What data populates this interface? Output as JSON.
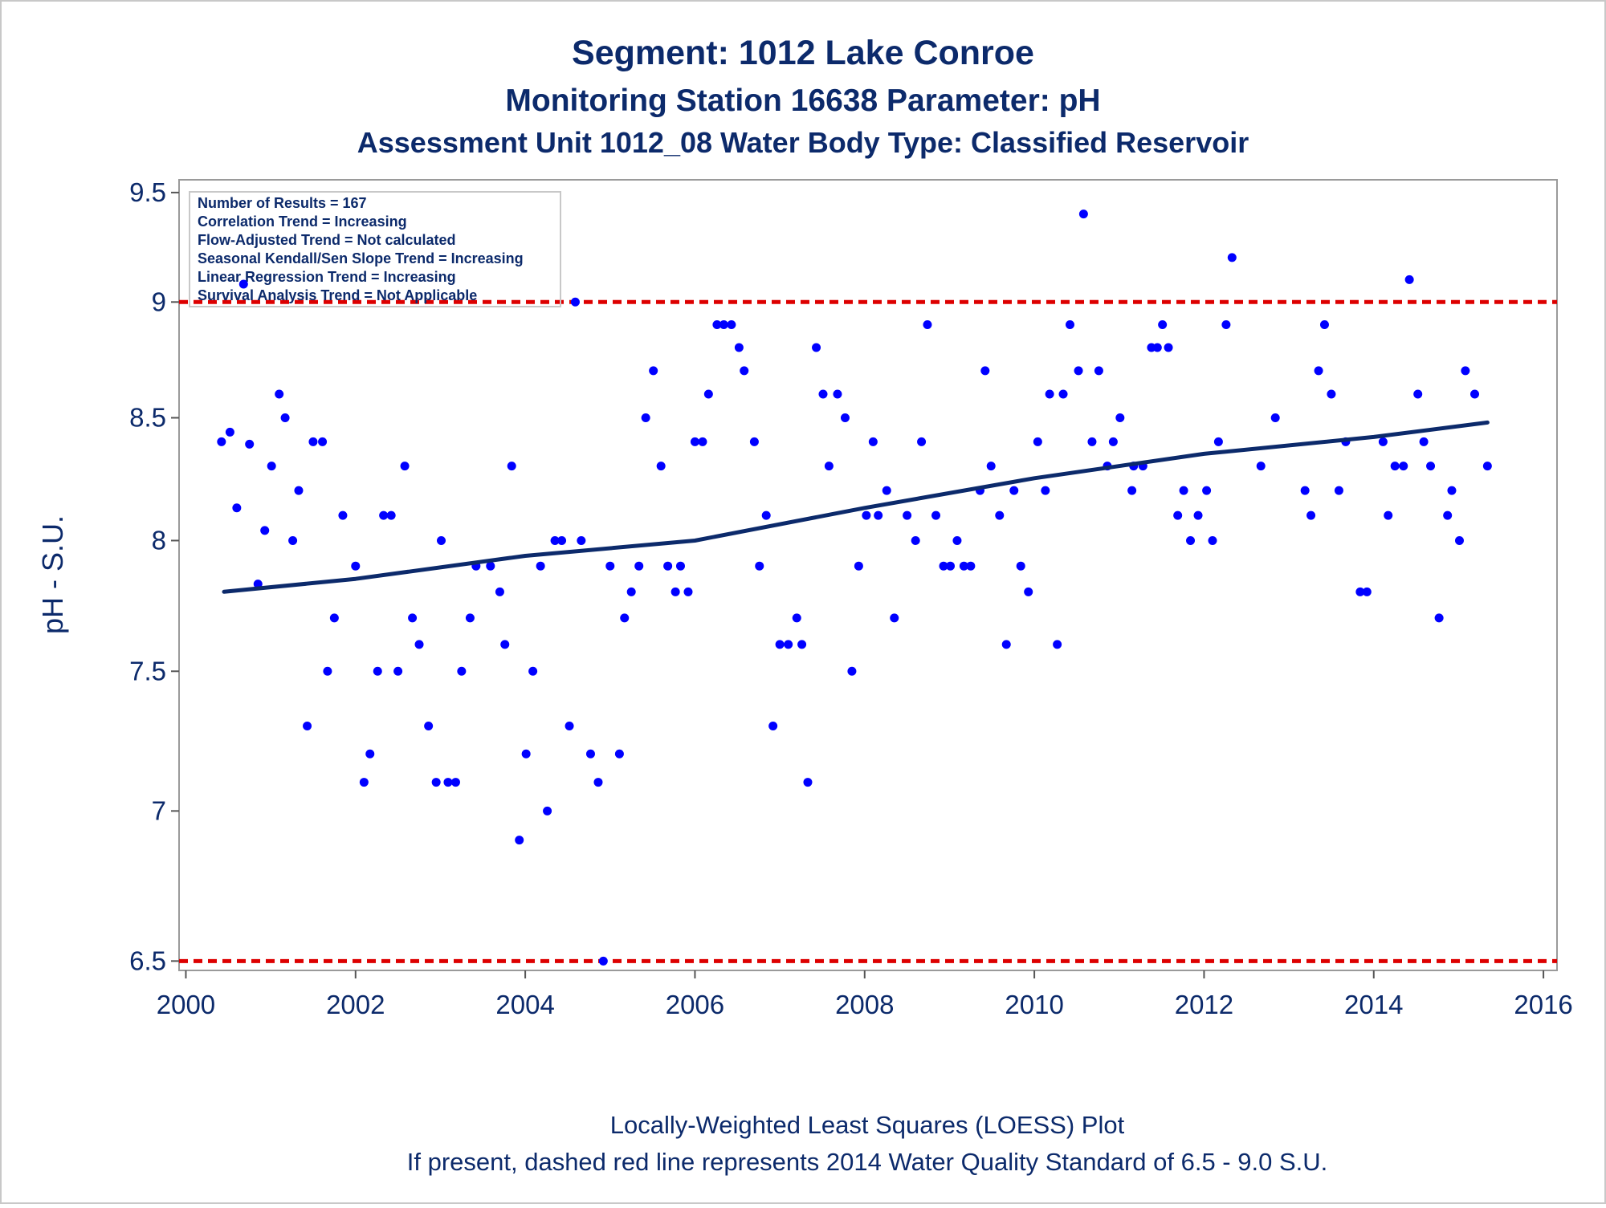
{
  "chart_data": {
    "type": "scatter",
    "title": "Segment: 1012  Lake Conroe",
    "subtitle": "Monitoring Station 16638 Parameter: pH",
    "subtitle2": "Assessment Unit 1012_08   Water Body Type: Classified Reservoir",
    "y_label": "pH - S.U.",
    "footnotes": [
      "Locally-Weighted Least Squares (LOESS) Plot",
      "If present, dashed red line represents 2014 Water Quality Standard of 6.5 - 9.0 S.U."
    ],
    "annotations": [
      "Number of Results = 167",
      "Correlation Trend = Increasing",
      "Flow-Adjusted Trend = Not calculated",
      "Seasonal Kendall/Sen Slope Trend = Increasing",
      "Linear Regression Trend = Increasing",
      "Survival Analysis Trend = Not Applicable"
    ],
    "xlim": [
      1999.92,
      2016.16
    ],
    "xticks": [
      2000,
      2002,
      2004,
      2006,
      2008,
      2010,
      2012,
      2014,
      2016
    ],
    "ylim": [
      6.47,
      9.56
    ],
    "yticks": [
      6.5,
      7,
      7.5,
      8,
      8.5,
      9,
      9.5
    ],
    "yscale": "log",
    "reference_lines": [
      {
        "value": 9,
        "color": "#dd0000"
      },
      {
        "value": 6.5,
        "color": "#dd0000"
      }
    ],
    "series": [
      {
        "mark": "scatter",
        "color": "#0000ff",
        "x": [
          2000.42,
          2000.52,
          2000.6,
          2000.68,
          2000.75,
          2000.85,
          2000.93,
          2001.01,
          2001.1,
          2001.17,
          2001.26,
          2001.33,
          2001.43,
          2001.5,
          2001.61,
          2001.67,
          2001.75,
          2001.85,
          2002.0,
          2002.1,
          2002.17,
          2002.26,
          2002.33,
          2002.42,
          2002.5,
          2002.58,
          2002.67,
          2002.75,
          2002.86,
          2002.95,
          2003.01,
          2003.09,
          2003.18,
          2003.25,
          2003.35,
          2003.42,
          2003.59,
          2003.7,
          2003.76,
          2003.84,
          2003.93,
          2004.01,
          2004.09,
          2004.18,
          2004.26,
          2004.35,
          2004.43,
          2004.52,
          2004.59,
          2004.66,
          2004.77,
          2004.86,
          2004.92,
          2005.0,
          2005.11,
          2005.17,
          2005.25,
          2005.34,
          2005.42,
          2005.51,
          2005.6,
          2005.68,
          2005.77,
          2005.83,
          2005.92,
          2006.0,
          2006.09,
          2006.16,
          2006.26,
          2006.34,
          2006.43,
          2006.52,
          2006.58,
          2006.7,
          2006.76,
          2006.84,
          2006.92,
          2007.0,
          2007.1,
          2007.2,
          2007.26,
          2007.33,
          2007.43,
          2007.51,
          2007.58,
          2007.68,
          2007.77,
          2007.85,
          2007.93,
          2008.02,
          2008.1,
          2008.16,
          2008.26,
          2008.35,
          2008.5,
          2008.6,
          2008.67,
          2008.74,
          2008.84,
          2008.93,
          2009.01,
          2009.09,
          2009.17,
          2009.25,
          2009.36,
          2009.42,
          2009.49,
          2009.59,
          2009.67,
          2009.76,
          2009.84,
          2009.93,
          2010.04,
          2010.13,
          2010.18,
          2010.27,
          2010.34,
          2010.42,
          2010.52,
          2010.58,
          2010.68,
          2010.76,
          2010.86,
          2010.93,
          2011.01,
          2011.15,
          2011.17,
          2011.28,
          2011.38,
          2011.45,
          2011.51,
          2011.58,
          2011.69,
          2011.76,
          2011.84,
          2011.93,
          2012.03,
          2012.1,
          2012.17,
          2012.26,
          2012.33,
          2012.67,
          2012.84,
          2013.19,
          2013.26,
          2013.35,
          2013.42,
          2013.5,
          2013.59,
          2013.67,
          2013.84,
          2013.92,
          2014.11,
          2014.17,
          2014.25,
          2014.35,
          2014.42,
          2014.52,
          2014.59,
          2014.67,
          2014.77,
          2014.87,
          2014.92,
          2015.01,
          2015.08,
          2015.19,
          2015.34
        ],
        "values": [
          8.4,
          8.44,
          8.13,
          9.08,
          8.39,
          7.83,
          8.04,
          8.3,
          8.6,
          8.5,
          8.0,
          8.2,
          7.3,
          8.4,
          8.4,
          7.5,
          7.7,
          8.1,
          7.9,
          7.1,
          7.2,
          7.5,
          8.1,
          8.1,
          7.5,
          8.3,
          7.7,
          7.6,
          7.3,
          7.1,
          8.0,
          7.1,
          7.1,
          7.5,
          7.7,
          7.9,
          7.9,
          7.8,
          7.6,
          8.3,
          6.9,
          7.2,
          7.5,
          7.9,
          7.0,
          8.0,
          8.0,
          7.3,
          9.0,
          8.0,
          7.2,
          7.1,
          6.5,
          7.9,
          7.2,
          7.7,
          7.8,
          7.9,
          8.5,
          8.7,
          8.3,
          7.9,
          7.8,
          7.9,
          7.8,
          8.4,
          8.4,
          8.6,
          8.9,
          8.9,
          8.9,
          8.8,
          8.7,
          8.4,
          7.9,
          8.1,
          7.3,
          7.6,
          7.6,
          7.7,
          7.6,
          7.1,
          8.8,
          8.6,
          8.3,
          8.6,
          8.5,
          7.5,
          7.9,
          8.1,
          8.4,
          8.1,
          8.2,
          7.7,
          8.1,
          8.0,
          8.4,
          8.9,
          8.1,
          7.9,
          7.9,
          8.0,
          7.9,
          7.9,
          8.2,
          8.7,
          8.3,
          8.1,
          7.6,
          8.2,
          7.9,
          7.8,
          8.4,
          8.2,
          8.6,
          7.6,
          8.6,
          8.9,
          8.7,
          9.4,
          8.4,
          8.7,
          8.3,
          8.4,
          8.5,
          8.2,
          8.3,
          8.3,
          8.8,
          8.8,
          8.9,
          8.8,
          8.1,
          8.2,
          8.0,
          8.1,
          8.2,
          8.0,
          8.4,
          8.9,
          9.2,
          8.3,
          8.5,
          8.2,
          8.1,
          8.7,
          8.9,
          8.6,
          8.2,
          8.4,
          7.8,
          7.8,
          8.4,
          8.1,
          8.3,
          8.3,
          9.1,
          8.6,
          8.4,
          8.3,
          7.7,
          8.1,
          8.2,
          8.0,
          8.7,
          8.6,
          8.3
        ]
      },
      {
        "mark": "line",
        "color": "#0c2a6b",
        "x": [
          2000.45,
          2002,
          2004,
          2006,
          2008,
          2010,
          2012,
          2014,
          2015.34
        ],
        "values": [
          7.8,
          7.85,
          7.94,
          8.0,
          8.13,
          8.25,
          8.35,
          8.42,
          8.48
        ]
      }
    ]
  }
}
